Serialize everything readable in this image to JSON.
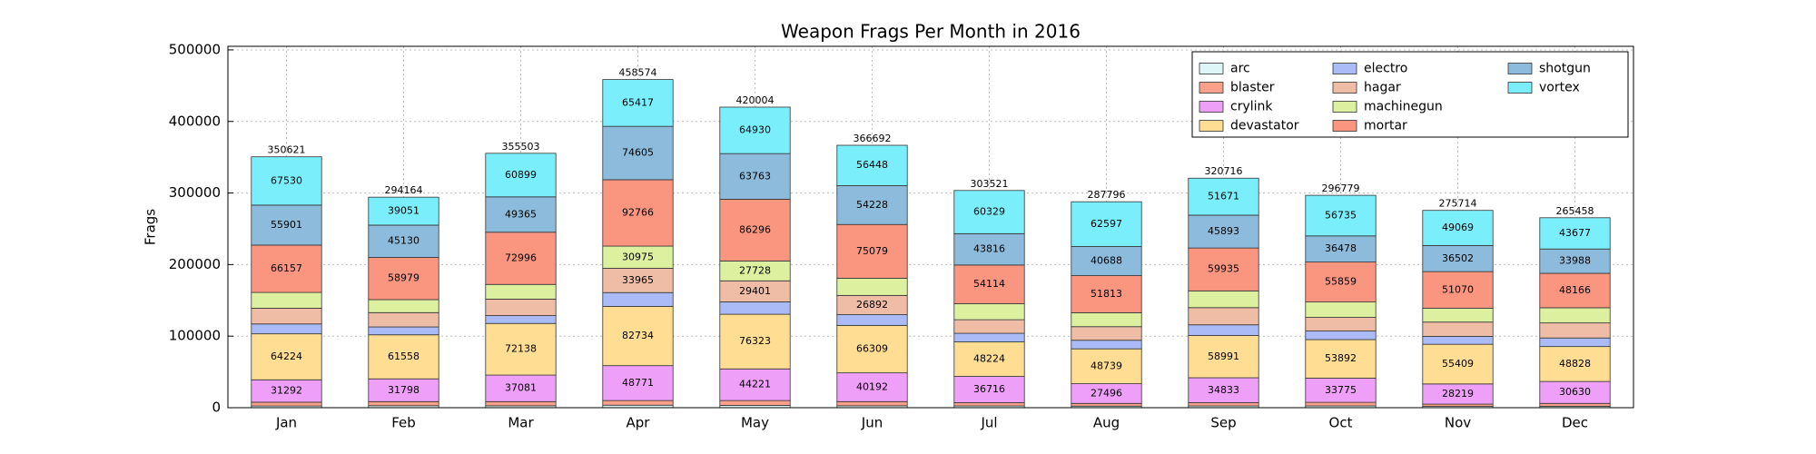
{
  "chart_data": {
    "type": "stacked_bar",
    "title": "Weapon Frags Per Month in 2016",
    "y_label": "Frags",
    "categories": [
      "Jan",
      "Feb",
      "Mar",
      "Apr",
      "May",
      "Jun",
      "Jul",
      "Aug",
      "Sep",
      "Oct",
      "Nov",
      "Dec"
    ],
    "totals": [
      350621,
      294164,
      355503,
      458574,
      420004,
      366692,
      303521,
      287796,
      320716,
      296779,
      275714,
      265458
    ],
    "series": [
      {
        "name": "arc",
        "color": "#dff6f9",
        "values": [
          2400,
          2800,
          2700,
          3500,
          3200,
          2700,
          2500,
          2200,
          2500,
          2500,
          1800,
          2000
        ],
        "value_labels": [
          null,
          null,
          null,
          null,
          null,
          null,
          null,
          null,
          null,
          null,
          null,
          null
        ]
      },
      {
        "name": "blaster",
        "color": "#f9a08a",
        "values": [
          5300,
          5700,
          5800,
          6500,
          6800,
          5800,
          4500,
          3800,
          4500,
          5000,
          3200,
          4000
        ],
        "value_labels": [
          null,
          null,
          null,
          null,
          null,
          null,
          null,
          null,
          null,
          null,
          null,
          null
        ]
      },
      {
        "name": "crylink",
        "color": "#eea0f8",
        "values": [
          31292,
          31798,
          37081,
          48771,
          44221,
          40192,
          36716,
          27496,
          34833,
          33775,
          28219,
          30630
        ],
        "value_labels": [
          "31292",
          "31798",
          "37081",
          "48771",
          "44221",
          "40192",
          "36716",
          "27496",
          "34833",
          "33775",
          "28219",
          "30630"
        ]
      },
      {
        "name": "devastator",
        "color": "#ffdd92",
        "values": [
          64224,
          61558,
          72138,
          82734,
          76323,
          66309,
          48224,
          48739,
          58991,
          53892,
          55409,
          48828
        ],
        "value_labels": [
          "64224",
          "61558",
          "72138",
          "82734",
          "76323",
          "66309",
          "48224",
          "48739",
          "58991",
          "53892",
          "55409",
          "48828"
        ]
      },
      {
        "name": "electro",
        "color": "#aabbf8",
        "values": [
          13800,
          11000,
          11000,
          19341,
          17342,
          15000,
          12000,
          12000,
          15000,
          12000,
          11000,
          12000
        ],
        "value_labels": [
          null,
          null,
          null,
          null,
          null,
          null,
          null,
          null,
          null,
          null,
          null,
          null
        ]
      },
      {
        "name": "hagar",
        "color": "#efbda5",
        "values": [
          22000,
          20000,
          23000,
          33965,
          29401,
          26892,
          19000,
          19000,
          24000,
          19000,
          20000,
          21000
        ],
        "value_labels": [
          null,
          null,
          null,
          "33965",
          "29401",
          "26892",
          null,
          null,
          null,
          null,
          null,
          null
        ]
      },
      {
        "name": "machinegun",
        "color": "#ddf0a0",
        "values": [
          22017,
          18148,
          20524,
          30975,
          27728,
          24044,
          22322,
          19463,
          23393,
          21540,
          19445,
          21169
        ],
        "value_labels": [
          null,
          null,
          null,
          "30975",
          "27728",
          null,
          null,
          null,
          null,
          null,
          null,
          null
        ]
      },
      {
        "name": "mortar",
        "color": "#fa9580",
        "values": [
          66157,
          58979,
          72996,
          92766,
          86296,
          75079,
          54114,
          51813,
          59935,
          55859,
          51070,
          48166
        ],
        "value_labels": [
          "66157",
          "58979",
          "72996",
          "92766",
          "86296",
          "75079",
          "54114",
          "51813",
          "59935",
          "55859",
          "51070",
          "48166"
        ]
      },
      {
        "name": "shotgun",
        "color": "#8cbbdc",
        "values": [
          55901,
          45130,
          49365,
          74605,
          63763,
          54228,
          43816,
          40688,
          45893,
          36478,
          36502,
          33988
        ],
        "value_labels": [
          "55901",
          "45130",
          "49365",
          "74605",
          "63763",
          "54228",
          "43816",
          "40688",
          "45893",
          "36478",
          "36502",
          "33988"
        ]
      },
      {
        "name": "vortex",
        "color": "#7beefc",
        "values": [
          67530,
          39051,
          60899,
          65417,
          64930,
          56448,
          60329,
          62597,
          51671,
          56735,
          49069,
          43677
        ],
        "value_labels": [
          "67530",
          "39051",
          "60899",
          "65417",
          "64930",
          "56448",
          "60329",
          "62597",
          "51671",
          "56735",
          "49069",
          "43677"
        ]
      }
    ],
    "ylim": [
      0,
      505000
    ],
    "yticks": [
      0,
      100000,
      200000,
      300000,
      400000,
      500000
    ],
    "grid": true,
    "legend": "upper right",
    "legend_columns": 3
  }
}
